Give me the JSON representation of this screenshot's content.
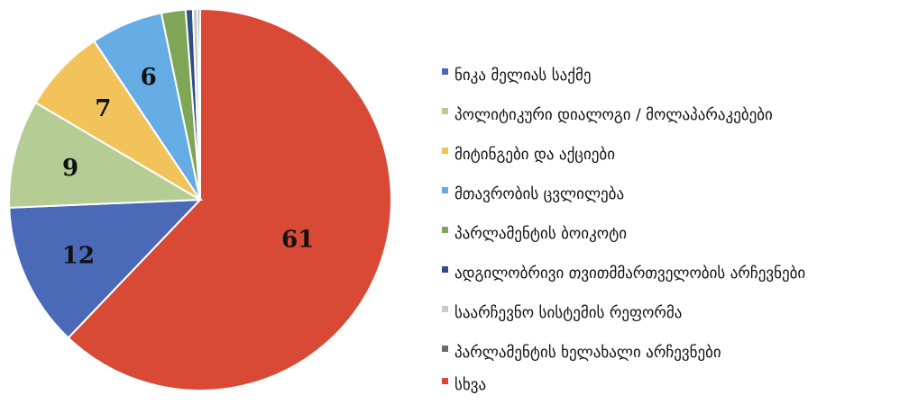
{
  "chart_data": {
    "type": "pie",
    "title": "",
    "slices": [
      {
        "label": "ნიკა მელიას საქმე",
        "value": 12,
        "color": "#4a6ab7",
        "display": "12"
      },
      {
        "label": "პოლიტიკური დიალოგი / მოლაპარაკებები",
        "value": 9,
        "color": "#b5cd95",
        "display": "9"
      },
      {
        "label": "მიტინგები და აქციები",
        "value": 7,
        "color": "#f2c35a",
        "display": "7"
      },
      {
        "label": "მთავრობის ცვლილება",
        "value": 6,
        "color": "#66ace4",
        "display": "6"
      },
      {
        "label": "პარლამენტის ბოიკოტი",
        "value": 2,
        "color": "#7fa556",
        "display": ""
      },
      {
        "label": "ადგილობრივი თვითმმართველობის არჩევნები",
        "value": 0.6,
        "color": "#2e4e86",
        "display": ""
      },
      {
        "label": "საარჩევნო სისტემის რეფორმა",
        "value": 0.4,
        "color": "#c9c9c9",
        "display": ""
      },
      {
        "label": "პარლამენტის ხელახალი არჩევნები",
        "value": 0.2,
        "color": "#6b6b6b",
        "display": ""
      },
      {
        "label": "სხვა",
        "value": 61,
        "color": "#d84a36",
        "display": "61"
      }
    ],
    "legend_position": "right"
  }
}
